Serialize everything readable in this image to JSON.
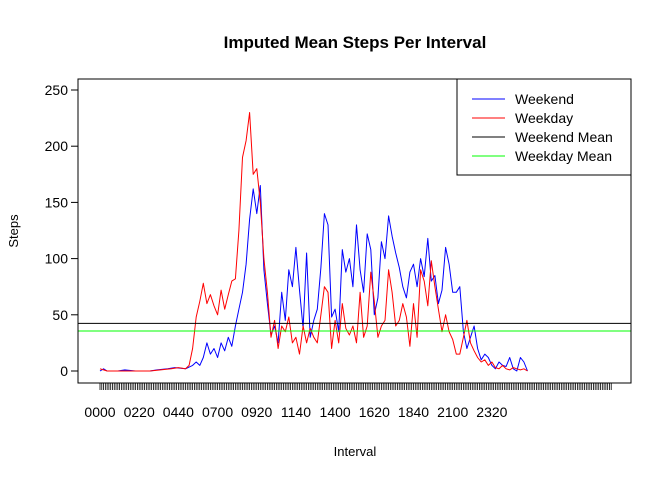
{
  "chart_data": {
    "type": "line",
    "title": "Imputed Mean Steps Per Interval",
    "xlabel": "Interval",
    "ylabel": "Steps",
    "xlim": [
      0,
      288
    ],
    "ylim": [
      -10,
      260
    ],
    "yticks": [
      0,
      50,
      100,
      150,
      200,
      250
    ],
    "xtick_labels": [
      {
        "index": 0,
        "label": "0000"
      },
      {
        "index": 22,
        "label": "0220"
      },
      {
        "index": 44,
        "label": "0440"
      },
      {
        "index": 66,
        "label": "0700"
      },
      {
        "index": 88,
        "label": "0920"
      },
      {
        "index": 110,
        "label": "1140"
      },
      {
        "index": 132,
        "label": "1400"
      },
      {
        "index": 154,
        "label": "1620"
      },
      {
        "index": 176,
        "label": "1840"
      },
      {
        "index": 198,
        "label": "2100"
      },
      {
        "index": 220,
        "label": "2320"
      }
    ],
    "legend_position": "top-right",
    "series": [
      {
        "name": "Weekend",
        "color": "#0000ff",
        "points": [
          [
            0,
            0
          ],
          [
            2,
            2
          ],
          [
            4,
            0
          ],
          [
            10,
            0
          ],
          [
            14,
            1
          ],
          [
            20,
            0
          ],
          [
            28,
            0
          ],
          [
            32,
            1
          ],
          [
            38,
            2
          ],
          [
            42,
            3
          ],
          [
            48,
            2
          ],
          [
            52,
            5
          ],
          [
            54,
            8
          ],
          [
            56,
            5
          ],
          [
            58,
            12
          ],
          [
            60,
            25
          ],
          [
            62,
            15
          ],
          [
            64,
            20
          ],
          [
            66,
            12
          ],
          [
            68,
            25
          ],
          [
            70,
            18
          ],
          [
            72,
            30
          ],
          [
            74,
            22
          ],
          [
            76,
            40
          ],
          [
            78,
            55
          ],
          [
            80,
            70
          ],
          [
            82,
            95
          ],
          [
            84,
            135
          ],
          [
            86,
            162
          ],
          [
            88,
            140
          ],
          [
            90,
            165
          ],
          [
            92,
            90
          ],
          [
            94,
            60
          ],
          [
            96,
            32
          ],
          [
            98,
            40
          ],
          [
            100,
            25
          ],
          [
            102,
            70
          ],
          [
            104,
            45
          ],
          [
            106,
            90
          ],
          [
            108,
            75
          ],
          [
            110,
            110
          ],
          [
            112,
            72
          ],
          [
            114,
            38
          ],
          [
            116,
            105
          ],
          [
            118,
            30
          ],
          [
            120,
            45
          ],
          [
            122,
            55
          ],
          [
            124,
            92
          ],
          [
            126,
            140
          ],
          [
            128,
            130
          ],
          [
            130,
            48
          ],
          [
            132,
            55
          ],
          [
            134,
            35
          ],
          [
            136,
            108
          ],
          [
            138,
            88
          ],
          [
            140,
            100
          ],
          [
            142,
            75
          ],
          [
            144,
            130
          ],
          [
            146,
            90
          ],
          [
            148,
            70
          ],
          [
            150,
            122
          ],
          [
            152,
            108
          ],
          [
            154,
            50
          ],
          [
            156,
            65
          ],
          [
            158,
            115
          ],
          [
            160,
            100
          ],
          [
            162,
            138
          ],
          [
            164,
            120
          ],
          [
            166,
            105
          ],
          [
            168,
            92
          ],
          [
            170,
            75
          ],
          [
            172,
            65
          ],
          [
            174,
            88
          ],
          [
            176,
            95
          ],
          [
            178,
            75
          ],
          [
            180,
            100
          ],
          [
            182,
            84
          ],
          [
            184,
            118
          ],
          [
            186,
            80
          ],
          [
            188,
            85
          ],
          [
            190,
            60
          ],
          [
            192,
            72
          ],
          [
            194,
            110
          ],
          [
            196,
            95
          ],
          [
            198,
            70
          ],
          [
            200,
            70
          ],
          [
            202,
            75
          ],
          [
            204,
            35
          ],
          [
            206,
            20
          ],
          [
            208,
            30
          ],
          [
            210,
            40
          ],
          [
            212,
            20
          ],
          [
            214,
            10
          ],
          [
            216,
            15
          ],
          [
            218,
            12
          ],
          [
            220,
            5
          ],
          [
            222,
            2
          ],
          [
            224,
            8
          ],
          [
            226,
            5
          ],
          [
            228,
            4
          ],
          [
            230,
            12
          ],
          [
            232,
            2
          ],
          [
            234,
            0
          ],
          [
            236,
            12
          ],
          [
            238,
            8
          ],
          [
            240,
            0
          ]
        ]
      },
      {
        "name": "Weekday",
        "color": "#ff0000",
        "points": [
          [
            0,
            2
          ],
          [
            2,
            1
          ],
          [
            4,
            0
          ],
          [
            10,
            0
          ],
          [
            14,
            0
          ],
          [
            20,
            0
          ],
          [
            28,
            0
          ],
          [
            34,
            1
          ],
          [
            40,
            2
          ],
          [
            44,
            3
          ],
          [
            48,
            2
          ],
          [
            50,
            5
          ],
          [
            52,
            20
          ],
          [
            54,
            48
          ],
          [
            56,
            62
          ],
          [
            58,
            78
          ],
          [
            60,
            60
          ],
          [
            62,
            68
          ],
          [
            64,
            58
          ],
          [
            66,
            50
          ],
          [
            68,
            72
          ],
          [
            70,
            55
          ],
          [
            72,
            68
          ],
          [
            74,
            80
          ],
          [
            76,
            82
          ],
          [
            78,
            125
          ],
          [
            80,
            190
          ],
          [
            82,
            205
          ],
          [
            84,
            230
          ],
          [
            86,
            175
          ],
          [
            88,
            180
          ],
          [
            90,
            150
          ],
          [
            92,
            100
          ],
          [
            94,
            70
          ],
          [
            96,
            30
          ],
          [
            98,
            45
          ],
          [
            100,
            20
          ],
          [
            102,
            40
          ],
          [
            104,
            35
          ],
          [
            106,
            48
          ],
          [
            108,
            25
          ],
          [
            110,
            30
          ],
          [
            112,
            15
          ],
          [
            114,
            40
          ],
          [
            116,
            25
          ],
          [
            118,
            38
          ],
          [
            120,
            30
          ],
          [
            122,
            25
          ],
          [
            124,
            50
          ],
          [
            126,
            75
          ],
          [
            128,
            70
          ],
          [
            130,
            20
          ],
          [
            132,
            45
          ],
          [
            134,
            25
          ],
          [
            136,
            60
          ],
          [
            138,
            38
          ],
          [
            140,
            32
          ],
          [
            142,
            40
          ],
          [
            144,
            25
          ],
          [
            146,
            70
          ],
          [
            148,
            30
          ],
          [
            150,
            40
          ],
          [
            152,
            88
          ],
          [
            154,
            62
          ],
          [
            156,
            30
          ],
          [
            158,
            40
          ],
          [
            160,
            45
          ],
          [
            162,
            90
          ],
          [
            164,
            70
          ],
          [
            166,
            40
          ],
          [
            168,
            45
          ],
          [
            170,
            60
          ],
          [
            172,
            48
          ],
          [
            174,
            22
          ],
          [
            176,
            60
          ],
          [
            178,
            30
          ],
          [
            180,
            90
          ],
          [
            182,
            80
          ],
          [
            184,
            58
          ],
          [
            186,
            98
          ],
          [
            188,
            75
          ],
          [
            190,
            55
          ],
          [
            192,
            35
          ],
          [
            194,
            50
          ],
          [
            196,
            35
          ],
          [
            198,
            28
          ],
          [
            200,
            15
          ],
          [
            202,
            15
          ],
          [
            204,
            30
          ],
          [
            206,
            45
          ],
          [
            208,
            25
          ],
          [
            210,
            18
          ],
          [
            212,
            12
          ],
          [
            214,
            8
          ],
          [
            216,
            10
          ],
          [
            218,
            5
          ],
          [
            220,
            8
          ],
          [
            222,
            3
          ],
          [
            224,
            2
          ],
          [
            226,
            5
          ],
          [
            228,
            2
          ],
          [
            230,
            1
          ],
          [
            232,
            3
          ],
          [
            234,
            2
          ],
          [
            236,
            1
          ],
          [
            238,
            2
          ],
          [
            240,
            0
          ]
        ]
      },
      {
        "name": "Weekend Mean",
        "color": "#000000",
        "hline": 42.4
      },
      {
        "name": "Weekday Mean",
        "color": "#00ff00",
        "hline": 35.6
      }
    ]
  }
}
